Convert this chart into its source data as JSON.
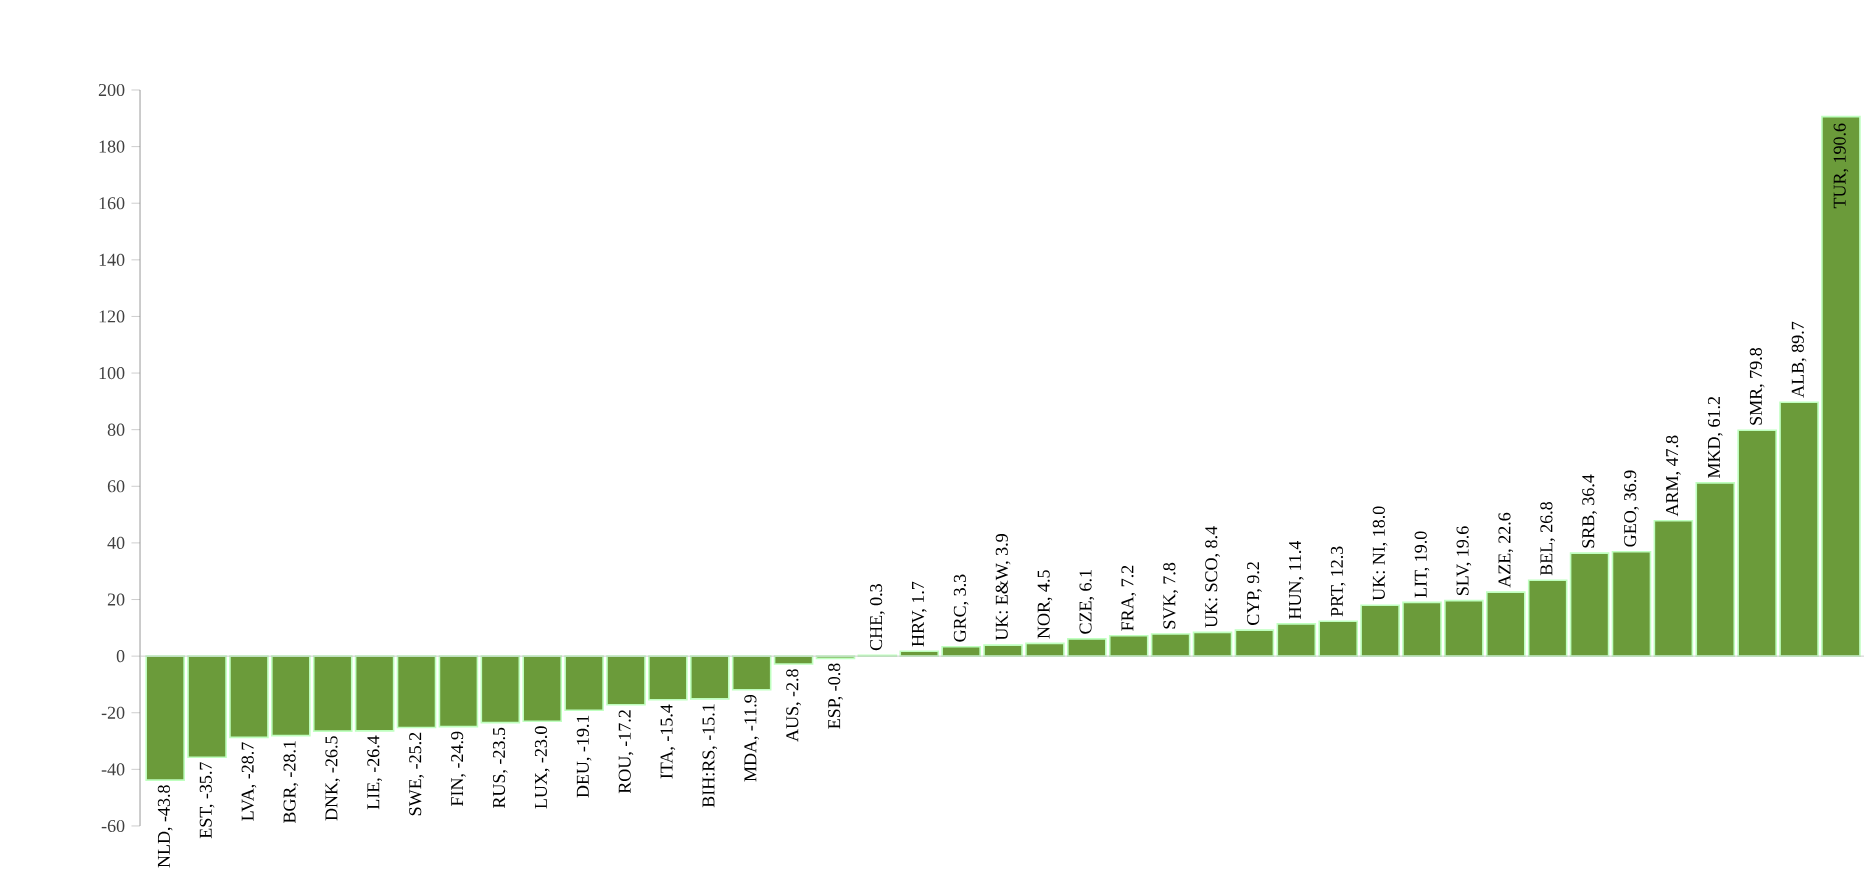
{
  "chart_data": {
    "type": "bar",
    "categories": [
      null,
      null,
      null,
      null,
      null,
      null,
      null,
      null,
      null,
      null,
      null,
      null,
      null,
      null,
      null,
      null,
      null,
      null,
      null,
      null,
      null,
      null,
      null,
      null,
      null,
      null,
      null,
      null,
      null,
      null,
      null,
      null,
      null,
      null,
      null,
      null,
      null,
      null,
      null,
      null,
      null
    ],
    "values": [
      -43.8,
      -35.7,
      -28.7,
      -28.1,
      -26.5,
      -26.4,
      -25.2,
      -24.9,
      -23.5,
      -23.0,
      -19.1,
      -17.2,
      -15.4,
      -15.1,
      -11.9,
      -2.8,
      -0.8,
      0.3,
      1.7,
      3.3,
      3.9,
      4.5,
      6.1,
      7.2,
      7.8,
      8.4,
      9.2,
      11.4,
      12.3,
      18.0,
      19.0,
      19.6,
      22.6,
      26.8,
      36.4,
      36.9,
      47.8,
      61.2,
      79.8,
      89.7,
      190.6
    ],
    "color": "#6b9b3a",
    "ylim": [
      -60,
      200
    ],
    "yticks": [
      -60,
      -40,
      -20,
      0,
      20,
      40,
      60,
      80,
      100,
      120,
      140,
      160,
      180,
      200
    ],
    "value_labels": [
      "NLD, -43.8",
      "EST, -35.7",
      "LVA, -28.7",
      "BGR, -28.1",
      "DNK, -26.5",
      "LIE, -26.4",
      "SWE, -25.2",
      "FIN, -24.9",
      "RUS, -23.5",
      "LUX, -23.0",
      "DEU, -19.1",
      "ROU, -17.2",
      "ITA, -15.4",
      "BIH:RS, -15.1",
      "MDA, -11.9",
      "AUS, -2.8",
      "ESP, -0.8",
      "CHE, 0.3",
      "HRV, 1.7",
      "GRC, 3.3",
      "UK: E&W, 3.9",
      "NOR, 4.5",
      "CZE, 6.1",
      "FRA, 7.2",
      "SVK, 7.8",
      "UK: SCO, 8.4",
      "CYP, 9.2",
      "HUN, 11.4",
      "PRT, 12.3",
      "UK: NI, 18.0",
      "LIT, 19.0",
      "SLV, 19.6",
      "AZE, 22.6",
      "BEL, 26.8",
      "SRB, 36.4",
      "GEO, 36.9",
      "ARM, 47.8",
      "MKD, 61.2",
      "SMR, 79.8",
      "ALB, 89.7",
      "TUR, 190.6"
    ],
    "tick_labels": "y"
  }
}
